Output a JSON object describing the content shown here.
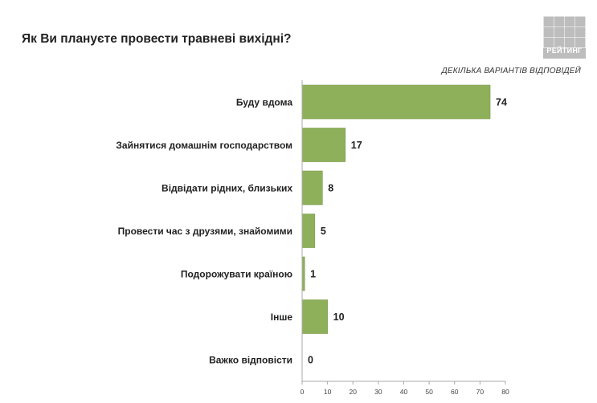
{
  "title": "Як Ви плануєте провести травневі вихідні?",
  "subtitle": "ДЕКІЛЬКА ВАРІАНТІВ ВІДПОВІДЕЙ",
  "logo_text": "РЕЙТИНГ",
  "colors": {
    "bar": "#8fb05a",
    "bar_stroke": "#7a9a48",
    "axis": "#a8a8a8",
    "logo_bg": "#bdbdbd"
  },
  "chart_data": {
    "type": "bar",
    "orientation": "horizontal",
    "title": "Як Ви плануєте провести травневі вихідні?",
    "subtitle": "ДЕКІЛЬКА ВАРІАНТІВ ВІДПОВІДЕЙ",
    "categories": [
      "Буду вдома",
      "Зайнятися домашнім господарством",
      "Відвідати рідних, близьких",
      "Провести час з друзями, знайомими",
      "Подорожувати країною",
      "Інше",
      "Важко відповісти"
    ],
    "values": [
      74,
      17,
      8,
      5,
      1,
      10,
      0
    ],
    "xlim": [
      0,
      80
    ],
    "xticks": [
      0,
      10,
      20,
      30,
      40,
      50,
      60,
      70,
      80
    ],
    "xlabel": "",
    "ylabel": "",
    "grid": false,
    "legend": "none"
  }
}
